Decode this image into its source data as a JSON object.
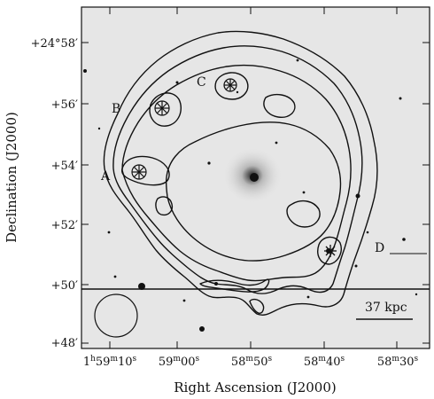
{
  "figure": {
    "xlabel": "Right Ascension (J2000)",
    "ylabel": "Declination (J2000)",
    "x_ticks": [
      {
        "h": "1",
        "m": "59",
        "s": "10"
      },
      {
        "h": "",
        "m": "59",
        "s": "00"
      },
      {
        "h": "",
        "m": "58",
        "s": "50"
      },
      {
        "h": "",
        "m": "58",
        "s": "40"
      },
      {
        "h": "",
        "m": "58",
        "s": "30"
      }
    ],
    "y_ticks": [
      "+24°58′",
      "+56′",
      "+54′",
      "+52′",
      "+50′",
      "+48′"
    ],
    "source_labels": [
      "A",
      "B",
      "C",
      "D"
    ],
    "scale_bar_label": "37 kpc",
    "colors": {
      "contour": "#111111",
      "sky": "#e6e6e6",
      "axis": "#111111"
    }
  }
}
